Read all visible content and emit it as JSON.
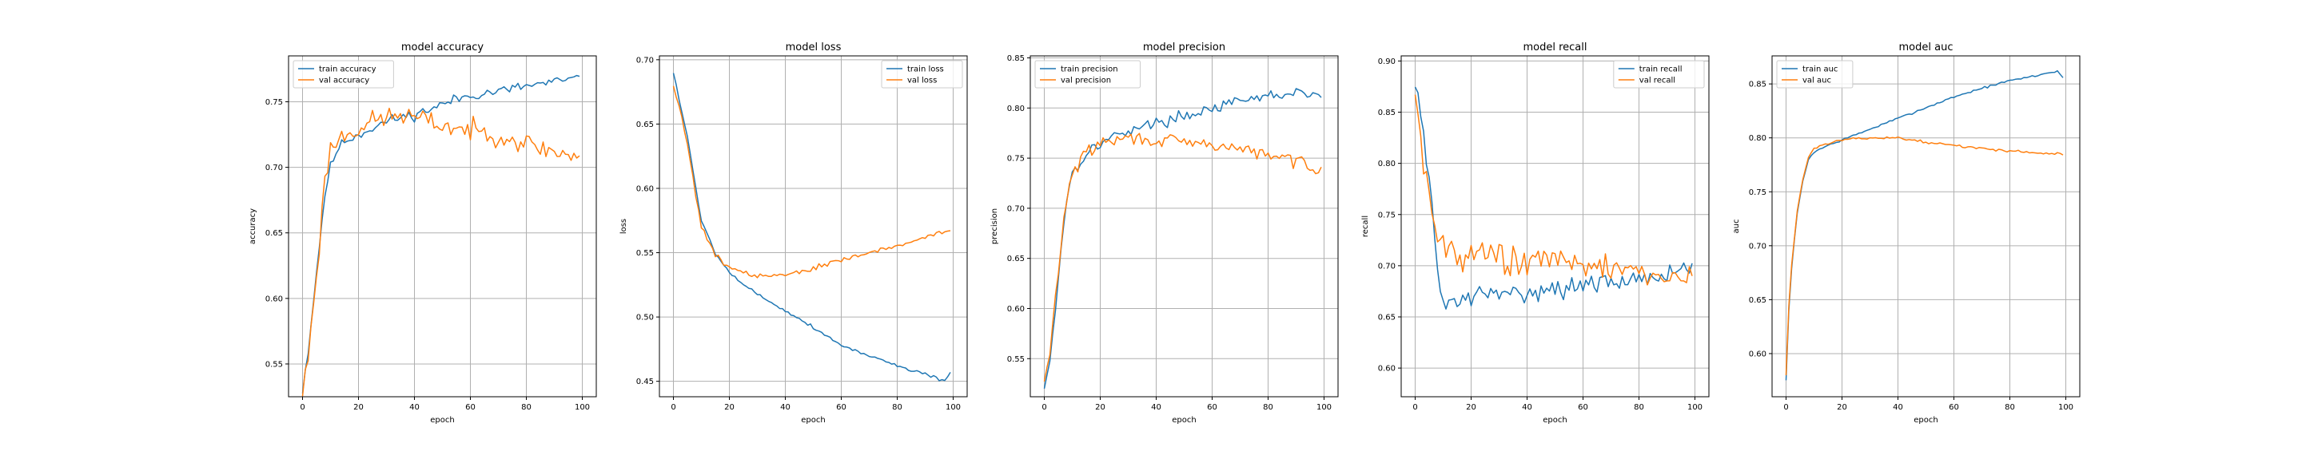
{
  "colors": {
    "train": "#1f77b4",
    "val": "#ff7f0e",
    "grid": "#b0b0b0",
    "axes": "#000000"
  },
  "chart_data": [
    {
      "type": "line",
      "title": "model accuracy",
      "xlabel": "epoch",
      "ylabel": "accuracy",
      "xlim": [
        -5,
        105
      ],
      "ylim": [
        0.525,
        0.785
      ],
      "xticks": [
        0,
        20,
        40,
        60,
        80,
        100
      ],
      "yticks": [
        0.55,
        0.6,
        0.65,
        0.7,
        0.75
      ],
      "ytick_labels": [
        "0.55",
        "0.60",
        "0.65",
        "0.70",
        "0.75"
      ],
      "grid": true,
      "legend": "upper left",
      "series": [
        {
          "name": "train accuracy",
          "color": "#1f77b4",
          "curve": [
            [
              0,
              0.53
            ],
            [
              2,
              0.56
            ],
            [
              5,
              0.62
            ],
            [
              8,
              0.68
            ],
            [
              10,
              0.7
            ],
            [
              12,
              0.712
            ],
            [
              15,
              0.72
            ],
            [
              20,
              0.725
            ],
            [
              25,
              0.73
            ],
            [
              30,
              0.735
            ],
            [
              35,
              0.738
            ],
            [
              40,
              0.74
            ],
            [
              45,
              0.744
            ],
            [
              50,
              0.748
            ],
            [
              55,
              0.752
            ],
            [
              60,
              0.755
            ],
            [
              70,
              0.758
            ],
            [
              80,
              0.762
            ],
            [
              90,
              0.765
            ],
            [
              99,
              0.768
            ]
          ],
          "noise": 0.006,
          "seed": 11
        },
        {
          "name": "val accuracy",
          "color": "#ff7f0e",
          "curve": [
            [
              0,
              0.528
            ],
            [
              2,
              0.555
            ],
            [
              4,
              0.6
            ],
            [
              6,
              0.64
            ],
            [
              8,
              0.69
            ],
            [
              10,
              0.715
            ],
            [
              15,
              0.725
            ],
            [
              20,
              0.73
            ],
            [
              25,
              0.735
            ],
            [
              30,
              0.738
            ],
            [
              35,
              0.74
            ],
            [
              40,
              0.738
            ],
            [
              45,
              0.735
            ],
            [
              50,
              0.732
            ],
            [
              55,
              0.73
            ],
            [
              60,
              0.728
            ],
            [
              70,
              0.725
            ],
            [
              80,
              0.718
            ],
            [
              90,
              0.712
            ],
            [
              99,
              0.708
            ]
          ],
          "noise": 0.012,
          "seed": 23
        }
      ]
    },
    {
      "type": "line",
      "title": "model loss",
      "xlabel": "epoch",
      "ylabel": "loss",
      "xlim": [
        -5,
        105
      ],
      "ylim": [
        0.438,
        0.703
      ],
      "xticks": [
        0,
        20,
        40,
        60,
        80,
        100
      ],
      "yticks": [
        0.45,
        0.5,
        0.55,
        0.6,
        0.65,
        0.7
      ],
      "ytick_labels": [
        "0.45",
        "0.50",
        "0.55",
        "0.60",
        "0.65",
        "0.70"
      ],
      "grid": true,
      "legend": "upper right",
      "series": [
        {
          "name": "train loss",
          "color": "#1f77b4",
          "curve": [
            [
              0,
              0.69
            ],
            [
              2,
              0.67
            ],
            [
              5,
              0.64
            ],
            [
              8,
              0.6
            ],
            [
              10,
              0.575
            ],
            [
              15,
              0.55
            ],
            [
              20,
              0.535
            ],
            [
              25,
              0.525
            ],
            [
              30,
              0.518
            ],
            [
              40,
              0.505
            ],
            [
              50,
              0.492
            ],
            [
              60,
              0.478
            ],
            [
              70,
              0.47
            ],
            [
              80,
              0.462
            ],
            [
              90,
              0.456
            ],
            [
              97,
              0.45
            ],
            [
              99,
              0.457
            ]
          ],
          "noise": 0.002,
          "seed": 5
        },
        {
          "name": "val loss",
          "color": "#ff7f0e",
          "curve": [
            [
              0,
              0.68
            ],
            [
              2,
              0.665
            ],
            [
              5,
              0.635
            ],
            [
              8,
              0.595
            ],
            [
              10,
              0.57
            ],
            [
              15,
              0.548
            ],
            [
              20,
              0.538
            ],
            [
              30,
              0.532
            ],
            [
              40,
              0.533
            ],
            [
              50,
              0.538
            ],
            [
              60,
              0.545
            ],
            [
              70,
              0.55
            ],
            [
              80,
              0.555
            ],
            [
              90,
              0.562
            ],
            [
              99,
              0.568
            ]
          ],
          "noise": 0.003,
          "seed": 9
        }
      ]
    },
    {
      "type": "line",
      "title": "model precision",
      "xlabel": "epoch",
      "ylabel": "precision",
      "xlim": [
        -5,
        105
      ],
      "ylim": [
        0.512,
        0.852
      ],
      "xticks": [
        0,
        20,
        40,
        60,
        80,
        100
      ],
      "yticks": [
        0.55,
        0.6,
        0.65,
        0.7,
        0.75,
        0.8,
        0.85
      ],
      "ytick_labels": [
        "0.55",
        "0.60",
        "0.65",
        "0.70",
        "0.75",
        "0.80",
        "0.85"
      ],
      "grid": true,
      "legend": "upper left",
      "series": [
        {
          "name": "train precision",
          "color": "#1f77b4",
          "curve": [
            [
              0,
              0.52
            ],
            [
              2,
              0.55
            ],
            [
              4,
              0.6
            ],
            [
              6,
              0.66
            ],
            [
              8,
              0.71
            ],
            [
              10,
              0.735
            ],
            [
              15,
              0.755
            ],
            [
              20,
              0.765
            ],
            [
              30,
              0.778
            ],
            [
              40,
              0.785
            ],
            [
              50,
              0.792
            ],
            [
              60,
              0.8
            ],
            [
              70,
              0.806
            ],
            [
              80,
              0.812
            ],
            [
              90,
              0.815
            ],
            [
              99,
              0.812
            ]
          ],
          "noise": 0.008,
          "seed": 17
        },
        {
          "name": "val precision",
          "color": "#ff7f0e",
          "curve": [
            [
              0,
              0.525
            ],
            [
              2,
              0.555
            ],
            [
              4,
              0.61
            ],
            [
              6,
              0.665
            ],
            [
              8,
              0.71
            ],
            [
              10,
              0.735
            ],
            [
              15,
              0.755
            ],
            [
              20,
              0.765
            ],
            [
              30,
              0.77
            ],
            [
              40,
              0.768
            ],
            [
              50,
              0.765
            ],
            [
              60,
              0.763
            ],
            [
              70,
              0.76
            ],
            [
              80,
              0.752
            ],
            [
              90,
              0.748
            ],
            [
              99,
              0.738
            ]
          ],
          "noise": 0.01,
          "seed": 29
        }
      ]
    },
    {
      "type": "line",
      "title": "model recall",
      "xlabel": "epoch",
      "ylabel": "recall",
      "xlim": [
        -5,
        105
      ],
      "ylim": [
        0.572,
        0.905
      ],
      "xticks": [
        0,
        20,
        40,
        60,
        80,
        100
      ],
      "yticks": [
        0.6,
        0.65,
        0.7,
        0.75,
        0.8,
        0.85,
        0.9
      ],
      "ytick_labels": [
        "0.60",
        "0.65",
        "0.70",
        "0.75",
        "0.80",
        "0.85",
        "0.90"
      ],
      "grid": true,
      "legend": "upper right",
      "series": [
        {
          "name": "train recall",
          "color": "#1f77b4",
          "curve": [
            [
              0,
              0.885
            ],
            [
              2,
              0.85
            ],
            [
              4,
              0.8
            ],
            [
              6,
              0.76
            ],
            [
              8,
              0.69
            ],
            [
              10,
              0.665
            ],
            [
              15,
              0.665
            ],
            [
              20,
              0.67
            ],
            [
              30,
              0.672
            ],
            [
              40,
              0.675
            ],
            [
              50,
              0.678
            ],
            [
              60,
              0.68
            ],
            [
              70,
              0.683
            ],
            [
              80,
              0.688
            ],
            [
              90,
              0.692
            ],
            [
              99,
              0.7
            ]
          ],
          "noise": 0.014,
          "seed": 31
        },
        {
          "name": "val recall",
          "color": "#ff7f0e",
          "curve": [
            [
              0,
              0.88
            ],
            [
              2,
              0.83
            ],
            [
              4,
              0.78
            ],
            [
              6,
              0.755
            ],
            [
              8,
              0.73
            ],
            [
              10,
              0.72
            ],
            [
              15,
              0.715
            ],
            [
              20,
              0.712
            ],
            [
              30,
              0.708
            ],
            [
              40,
              0.705
            ],
            [
              50,
              0.702
            ],
            [
              60,
              0.7
            ],
            [
              70,
              0.698
            ],
            [
              80,
              0.695
            ],
            [
              90,
              0.69
            ],
            [
              99,
              0.69
            ]
          ],
          "noise": 0.024,
          "seed": 43
        }
      ]
    },
    {
      "type": "line",
      "title": "model auc",
      "xlabel": "epoch",
      "ylabel": "auc",
      "xlim": [
        -5,
        105
      ],
      "ylim": [
        0.56,
        0.876
      ],
      "xticks": [
        0,
        20,
        40,
        60,
        80,
        100
      ],
      "yticks": [
        0.6,
        0.65,
        0.7,
        0.75,
        0.8,
        0.85
      ],
      "ytick_labels": [
        "0.60",
        "0.65",
        "0.70",
        "0.75",
        "0.80",
        "0.85"
      ],
      "grid": true,
      "legend": "upper left",
      "series": [
        {
          "name": "train auc",
          "color": "#1f77b4",
          "curve": [
            [
              0,
              0.575
            ],
            [
              1,
              0.64
            ],
            [
              2,
              0.68
            ],
            [
              4,
              0.73
            ],
            [
              6,
              0.76
            ],
            [
              8,
              0.78
            ],
            [
              10,
              0.787
            ],
            [
              15,
              0.793
            ],
            [
              20,
              0.798
            ],
            [
              30,
              0.808
            ],
            [
              40,
              0.818
            ],
            [
              50,
              0.828
            ],
            [
              60,
              0.838
            ],
            [
              70,
              0.846
            ],
            [
              80,
              0.853
            ],
            [
              90,
              0.858
            ],
            [
              97,
              0.862
            ],
            [
              99,
              0.856
            ]
          ],
          "noise": 0.0015,
          "seed": 7
        },
        {
          "name": "val auc",
          "color": "#ff7f0e",
          "curve": [
            [
              0,
              0.58
            ],
            [
              1,
              0.645
            ],
            [
              2,
              0.682
            ],
            [
              4,
              0.732
            ],
            [
              6,
              0.762
            ],
            [
              8,
              0.782
            ],
            [
              10,
              0.79
            ],
            [
              15,
              0.795
            ],
            [
              20,
              0.798
            ],
            [
              30,
              0.8
            ],
            [
              40,
              0.8
            ],
            [
              50,
              0.796
            ],
            [
              60,
              0.793
            ],
            [
              70,
              0.79
            ],
            [
              80,
              0.788
            ],
            [
              90,
              0.786
            ],
            [
              99,
              0.785
            ]
          ],
          "noise": 0.0015,
          "seed": 13
        }
      ]
    }
  ]
}
